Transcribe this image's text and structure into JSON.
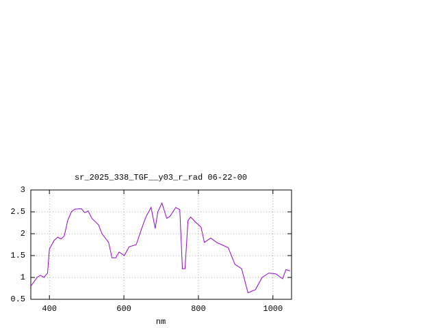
{
  "chart_data": {
    "type": "line",
    "title": "sr_2025_338_TGF__y03_r_rad 06-22-00",
    "x_label": "nm",
    "x": [
      350,
      367,
      376,
      385,
      395,
      400,
      413,
      422,
      431,
      440,
      449,
      459,
      468,
      486,
      495,
      504,
      514,
      532,
      541,
      559,
      568,
      578,
      587,
      601,
      614,
      633,
      651,
      660,
      673,
      684,
      691,
      702,
      715,
      724,
      739,
      750,
      757,
      764,
      772,
      779,
      794,
      807,
      816,
      833,
      849,
      862,
      880,
      898,
      916,
      933,
      953,
      971,
      989,
      1008,
      1026,
      1035,
      1046
    ],
    "series": [
      {
        "color": "#9400d3",
        "values": [
          0.8,
          1.0,
          1.05,
          1.0,
          1.1,
          1.65,
          1.85,
          1.92,
          1.88,
          1.95,
          2.3,
          2.5,
          2.56,
          2.57,
          2.48,
          2.52,
          2.35,
          2.2,
          2.0,
          1.8,
          1.45,
          1.45,
          1.58,
          1.5,
          1.7,
          1.75,
          2.2,
          2.4,
          2.6,
          2.12,
          2.5,
          2.7,
          2.35,
          2.4,
          2.6,
          2.55,
          1.2,
          1.2,
          2.3,
          2.38,
          2.25,
          2.15,
          1.8,
          1.9,
          1.8,
          1.75,
          1.68,
          1.3,
          1.2,
          0.65,
          0.72,
          1.0,
          1.1,
          1.08,
          0.97,
          1.18,
          1.15
        ]
      }
    ],
    "xlim": [
      350,
      1050
    ],
    "xticks": [
      400,
      600,
      800,
      1000
    ],
    "ylim": [
      0.5,
      3
    ],
    "yticks": [
      0.5,
      1,
      1.5,
      2,
      2.5,
      3
    ],
    "grid": true
  }
}
